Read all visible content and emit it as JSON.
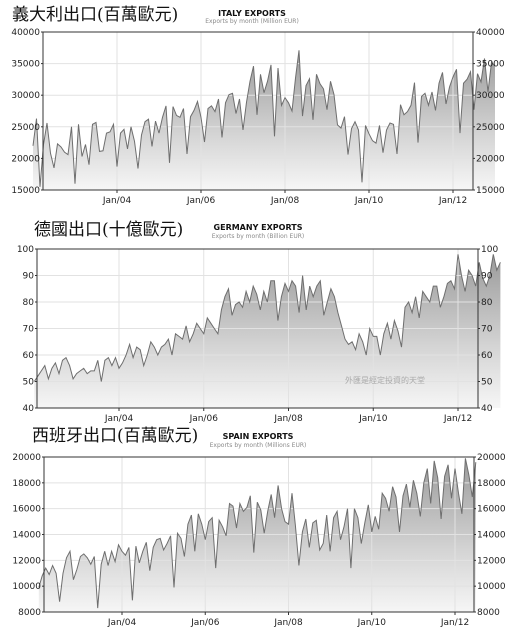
{
  "charts": [
    {
      "cn_title": "義大利出口(百萬歐元)",
      "chart_data": {
        "type": "area",
        "title": "ITALY EXPORTS",
        "subtitle": "Exports by month (Million EUR)",
        "x_start": "2002-01",
        "xticks": [
          "Jan/04",
          "Jan/06",
          "Jan/08",
          "Jan/10",
          "Jan/12"
        ],
        "ylim": [
          15000,
          40000
        ],
        "yticks": [
          15000,
          20000,
          25000,
          30000,
          35000,
          40000
        ],
        "grid": true,
        "values": [
          22000,
          26300,
          15500,
          22200,
          25600,
          20800,
          18500,
          22300,
          21800,
          21000,
          20600,
          25000,
          16000,
          25400,
          20300,
          22200,
          19000,
          25400,
          25700,
          21100,
          21200,
          24000,
          24200,
          25400,
          18700,
          24000,
          24600,
          21500,
          25000,
          22700,
          18400,
          23700,
          25800,
          26200,
          21900,
          25900,
          24000,
          26500,
          28300,
          19300,
          28200,
          26800,
          26500,
          27900,
          20700,
          26600,
          27600,
          29000,
          26500,
          22600,
          27900,
          28300,
          27400,
          29400,
          23300,
          28800,
          30100,
          30300,
          27100,
          29400,
          24500,
          28900,
          32200,
          34600,
          26900,
          33300,
          30400,
          32200,
          34800,
          23500,
          34300,
          28400,
          29600,
          28800,
          27500,
          32700,
          37100,
          26700,
          31500,
          32600,
          26100,
          33300,
          31800,
          31000,
          27700,
          32200,
          30100,
          25300,
          24800,
          26600,
          20600,
          24700,
          25800,
          24500,
          16200,
          25200,
          23900,
          22800,
          22400,
          25200,
          20900,
          24500,
          25600,
          25400,
          20700,
          28500,
          26900,
          27400,
          28400,
          32000,
          22500,
          29800,
          30300,
          28400,
          30500,
          27600,
          31900,
          33600,
          28600,
          31300,
          32900,
          34100,
          24000,
          31900,
          32500,
          33700,
          27700,
          33400,
          32100,
          35800,
          30500,
          35200,
          34600
        ]
      }
    },
    {
      "cn_title": "德國出口(十億歐元)",
      "watermark": "外匯是經定投資的天堂",
      "chart_data": {
        "type": "area",
        "title": "GERMANY EXPORTS",
        "subtitle": "Exports by month (Billion EUR)",
        "x_start": "2002-01",
        "xticks": [
          "Jan/04",
          "Jan/06",
          "Jan/08",
          "Jan/10",
          "Jan/12"
        ],
        "ylim": [
          40,
          100
        ],
        "yticks": [
          40,
          50,
          60,
          70,
          80,
          90,
          100
        ],
        "grid": true,
        "values": [
          50,
          52,
          54,
          56,
          51,
          55,
          57,
          53,
          58,
          59,
          56,
          51,
          53,
          54,
          55,
          53,
          54,
          54,
          58,
          50,
          58,
          59,
          56,
          59,
          55,
          57,
          60,
          64,
          59,
          63,
          62,
          56,
          60,
          65,
          63,
          60,
          63,
          64,
          66,
          60,
          68,
          67,
          66,
          71,
          65,
          68,
          72,
          70,
          68,
          74,
          72,
          70,
          68,
          77,
          82,
          85,
          75,
          79,
          80,
          78,
          84,
          80,
          86,
          83,
          77,
          84,
          80,
          88,
          88,
          73,
          82,
          87,
          84,
          88,
          86,
          76,
          90,
          77,
          86,
          82,
          86,
          88,
          75,
          80,
          85,
          82,
          76,
          71,
          66,
          64,
          65,
          62,
          68,
          65,
          60,
          70,
          67,
          67,
          60,
          68,
          72,
          66,
          73,
          69,
          63,
          78,
          80,
          76,
          82,
          74,
          84,
          82,
          80,
          86,
          86,
          78,
          82,
          87,
          88,
          85,
          98,
          90,
          84,
          92,
          90,
          86,
          95,
          89,
          86,
          90,
          98,
          92,
          95
        ]
      }
    },
    {
      "cn_title": "西班牙出口(百萬歐元)",
      "chart_data": {
        "type": "area",
        "title": "SPAIN EXPORTS",
        "subtitle": "Exports by month (Millions EUR)",
        "x_start": "2002-01",
        "xticks": [
          "Jan/04",
          "Jan/06",
          "Jan/08",
          "Jan/10",
          "Jan/12"
        ],
        "ylim": [
          8000,
          20000
        ],
        "yticks": [
          8000,
          10000,
          12000,
          14000,
          16000,
          18000,
          20000
        ],
        "grid": true,
        "values": [
          9900,
          10800,
          11400,
          10900,
          11600,
          11000,
          8800,
          11000,
          12200,
          12700,
          10500,
          11300,
          12300,
          12500,
          12200,
          11700,
          12300,
          8300,
          11700,
          12700,
          11600,
          12700,
          11900,
          13200,
          12700,
          12400,
          13000,
          8900,
          13100,
          11800,
          12700,
          13400,
          11200,
          13000,
          13600,
          13700,
          12800,
          13300,
          13900,
          9900,
          14100,
          13700,
          12300,
          14800,
          15500,
          12700,
          15600,
          14800,
          13600,
          15000,
          15300,
          11400,
          15100,
          14600,
          13900,
          16400,
          16200,
          14500,
          16400,
          15800,
          16100,
          17000,
          12600,
          16500,
          15900,
          14100,
          15800,
          17100,
          15300,
          17800,
          16000,
          15000,
          14800,
          17200,
          14700,
          11600,
          14200,
          15200,
          13000,
          14900,
          15100,
          12800,
          13300,
          15500,
          12700,
          15300,
          15800,
          13600,
          14600,
          16000,
          11400,
          16000,
          15300,
          13300,
          14900,
          16300,
          14200,
          15400,
          14400,
          17200,
          16800,
          15800,
          17700,
          16900,
          14200,
          17000,
          17900,
          16100,
          18200,
          17200,
          15400,
          18000,
          19100,
          16400,
          19700,
          18400,
          15200,
          18500,
          19400,
          16800,
          19100,
          17200,
          15600,
          19900,
          18600,
          16900,
          19600
        ]
      }
    }
  ]
}
